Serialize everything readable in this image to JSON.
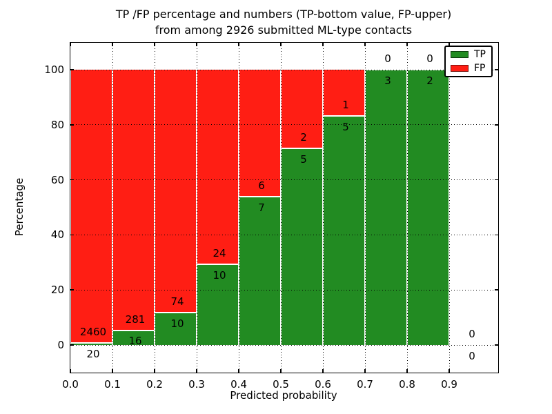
{
  "title": {
    "line1": "TP /FP percentage and numbers (TP-bottom value, FP-upper)",
    "line2": "from among 2926 submitted ML-type contacts"
  },
  "axes": {
    "xlabel": "Predicted probability",
    "ylabel": "Percentage",
    "x_tick_labels": [
      "0.0",
      "0.1",
      "0.2",
      "0.3",
      "0.4",
      "0.5",
      "0.6",
      "0.7",
      "0.8",
      "0.9"
    ],
    "y_tick_labels": [
      "0",
      "20",
      "40",
      "60",
      "80",
      "100"
    ],
    "y_tick_values": [
      0,
      20,
      40,
      60,
      80,
      100
    ]
  },
  "colors": {
    "tp": "#228B22",
    "fp": "#FF1E14",
    "grid": "#000000",
    "background": "#ffffff"
  },
  "legend": {
    "items": [
      {
        "label": "TP",
        "color": "#228B22"
      },
      {
        "label": "FP",
        "color": "#FF1E14"
      }
    ]
  },
  "chart_data": {
    "type": "bar",
    "stacked": true,
    "title": "TP /FP percentage and numbers (TP-bottom value, FP-upper) from among 2926 submitted ML-type contacts",
    "xlabel": "Predicted probability",
    "ylabel": "Percentage",
    "xlim": [
      0,
      1.016
    ],
    "ylim": [
      -10,
      110
    ],
    "grid": true,
    "legend_position": "upper right",
    "total_contacts": 2926,
    "bin_edges": [
      0.0,
      0.1,
      0.2,
      0.3,
      0.4,
      0.5,
      0.6,
      0.7,
      0.8,
      0.9,
      1.0
    ],
    "categories": [
      "0.0-0.1",
      "0.1-0.2",
      "0.2-0.3",
      "0.3-0.4",
      "0.4-0.5",
      "0.5-0.6",
      "0.6-0.7",
      "0.7-0.8",
      "0.8-0.9",
      "0.9-1.0"
    ],
    "series": [
      {
        "name": "TP",
        "color": "#228B22",
        "counts": [
          20,
          16,
          10,
          10,
          7,
          5,
          5,
          3,
          2,
          0
        ],
        "percent": [
          0.81,
          5.39,
          11.9,
          29.41,
          53.85,
          71.43,
          83.33,
          100,
          100,
          0
        ]
      },
      {
        "name": "FP",
        "color": "#FF1E14",
        "counts": [
          2460,
          281,
          74,
          24,
          6,
          2,
          1,
          0,
          0,
          0
        ],
        "percent": [
          99.19,
          94.61,
          88.1,
          70.59,
          46.15,
          28.57,
          16.67,
          0,
          0,
          0
        ]
      }
    ],
    "bar_count_labels": {
      "fp_upper": [
        "2460",
        "281",
        "74",
        "24",
        "6",
        "2",
        "1",
        "0",
        "0",
        "0"
      ],
      "tp_bottom": [
        "20",
        "16",
        "10",
        "10",
        "7",
        "5",
        "5",
        "3",
        "2",
        "0"
      ]
    }
  }
}
